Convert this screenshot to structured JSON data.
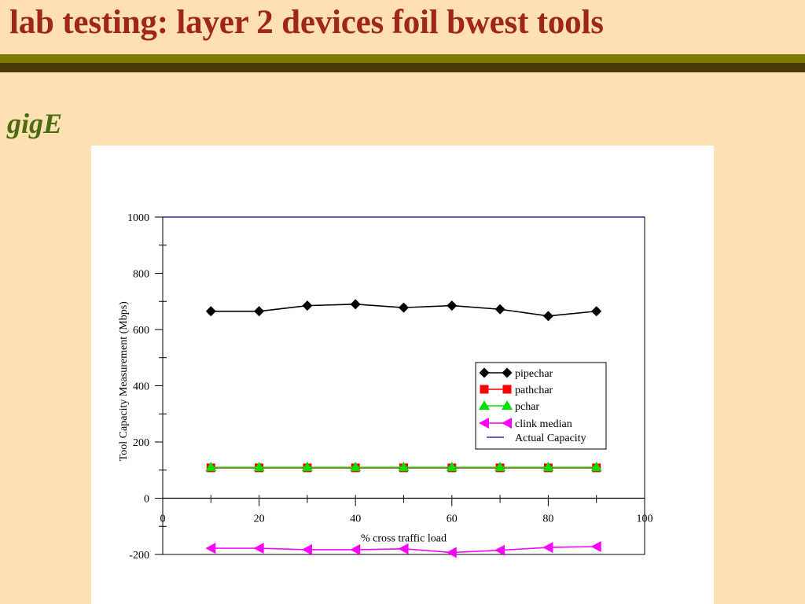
{
  "slide": {
    "title": "lab testing: layer 2 devices foil bwest tools",
    "subtitle": "gigE",
    "title_color": "#a0261a",
    "subtitle_color": "#4a6b0e",
    "background_color": "#ffe0b2",
    "bar_colors": [
      "#7a7a05",
      "#4a3a08"
    ]
  },
  "chart_data": {
    "type": "line",
    "xlabel": "% cross traffic load",
    "ylabel": "Tool Capacity Measurement (Mbps)",
    "xlim": [
      0,
      100
    ],
    "ylim": [
      -200,
      1000
    ],
    "x_ticks": [
      0,
      20,
      40,
      60,
      80,
      100
    ],
    "y_ticks": [
      -200,
      0,
      200,
      400,
      600,
      800,
      1000
    ],
    "x_axis_at_y": 0,
    "grid": false,
    "legend_position": "center-right",
    "series": [
      {
        "name": "pipechar",
        "marker": "diamond",
        "color": "#000000",
        "x": [
          10,
          20,
          30,
          40,
          50,
          60,
          70,
          80,
          90
        ],
        "values": [
          665,
          665,
          685,
          690,
          678,
          685,
          672,
          648,
          665
        ]
      },
      {
        "name": "pathchar",
        "marker": "square",
        "color": "#ff0000",
        "x": [
          10,
          20,
          30,
          40,
          50,
          60,
          70,
          80,
          90
        ],
        "values": [
          108,
          108,
          108,
          108,
          108,
          108,
          108,
          108,
          108
        ]
      },
      {
        "name": "pchar",
        "marker": "triangle",
        "color": "#00e000",
        "x": [
          10,
          20,
          30,
          40,
          50,
          60,
          70,
          80,
          90
        ],
        "values": [
          110,
          110,
          110,
          110,
          110,
          110,
          110,
          110,
          110
        ]
      },
      {
        "name": "clink median",
        "marker": "triangle-left",
        "color": "#ff00ff",
        "x": [
          10,
          20,
          30,
          40,
          50,
          60,
          70,
          80,
          90
        ],
        "values": [
          -178,
          -178,
          -183,
          -183,
          -180,
          -193,
          -185,
          -175,
          -172
        ]
      },
      {
        "name": "Actual Capacity",
        "marker": "none",
        "color": "#0000a0",
        "x": [
          0,
          100
        ],
        "values": [
          1000,
          1000
        ]
      }
    ]
  }
}
